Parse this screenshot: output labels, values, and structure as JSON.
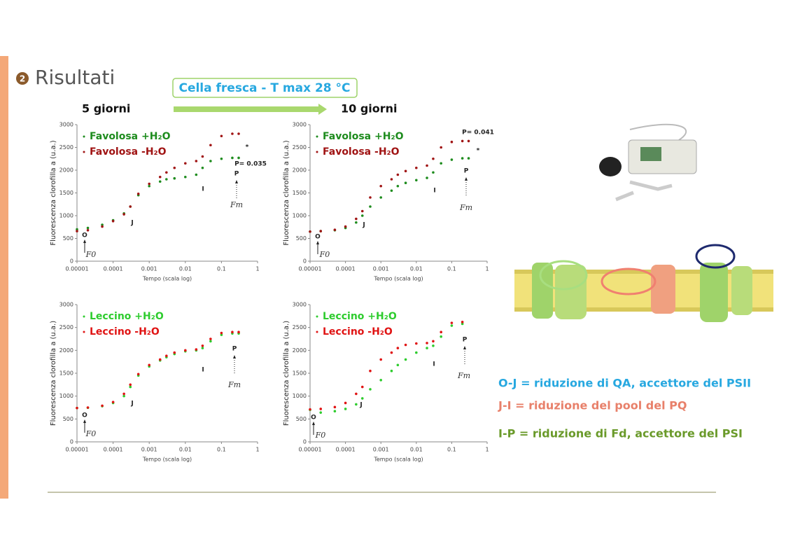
{
  "slide": {
    "number": "2",
    "title": "Risultati",
    "condition": "Cella fresca - T max 28 °C",
    "period_1": "5 giorni",
    "period_2": "10 giorni",
    "notes": [
      "O-J = riduzione di QA, accettore del PSII",
      "J-I = riduzione del pool del PQ",
      "I-P = riduzione di Fd, accettore del PSI"
    ]
  },
  "chart_data": [
    {
      "type": "scatter",
      "x_label": "Tempo (scala log)",
      "y_label": "Fluorescenza clorofilla a (u.a.)",
      "xscale": "log",
      "xlim": [
        1e-05,
        1
      ],
      "xticks": [
        {
          "value": 1e-05,
          "label": "0.00001"
        },
        0.0001,
        0.001,
        0.01,
        0.1,
        1
      ],
      "ylim": [
        0,
        3000
      ],
      "yticks": [
        0,
        500,
        1000,
        1500,
        2000,
        2500,
        3000
      ],
      "x": [
        1e-05,
        2e-05,
        5e-05,
        0.0001,
        0.0002,
        0.0003,
        0.0005,
        0.001,
        0.002,
        0.003,
        0.005,
        0.01,
        0.02,
        0.03,
        0.05,
        0.1,
        0.2,
        0.3
      ],
      "series": [
        {
          "name": "Favolosa +H₂O",
          "color": "#1e8c1e",
          "values": [
            700,
            730,
            800,
            900,
            1050,
            1200,
            1450,
            1650,
            1750,
            1800,
            1820,
            1850,
            1900,
            2050,
            2200,
            2250,
            2270,
            2270
          ]
        },
        {
          "name": "Favolosa -H₂O",
          "color": "#a01414",
          "values": [
            660,
            680,
            760,
            880,
            1030,
            1200,
            1480,
            1700,
            1850,
            1950,
            2050,
            2150,
            2200,
            2300,
            2550,
            2750,
            2800,
            2800
          ]
        }
      ],
      "annotations": [
        "O",
        "J",
        "I",
        "P",
        "Fm",
        "F0",
        "P= 0.035",
        "*"
      ]
    },
    {
      "type": "scatter",
      "x_label": "Tempo (scala log)",
      "y_label": "Fluorescenza clorofilla a (u.a.)",
      "xscale": "log",
      "xlim": [
        1e-05,
        1
      ],
      "xticks": [
        {
          "value": 1e-05,
          "label": "0.00001"
        },
        0.0001,
        0.001,
        0.01,
        0.1,
        1
      ],
      "ylim": [
        0,
        3000
      ],
      "yticks": [
        0,
        500,
        1000,
        1500,
        2000,
        2500,
        3000
      ],
      "x": [
        1e-05,
        2e-05,
        5e-05,
        0.0001,
        0.0002,
        0.0003,
        0.0005,
        0.001,
        0.002,
        0.003,
        0.005,
        0.01,
        0.02,
        0.03,
        0.05,
        0.1,
        0.2,
        0.3
      ],
      "series": [
        {
          "name": "Favolosa +H₂O",
          "color": "#1e8c1e",
          "values": [
            650,
            660,
            680,
            730,
            850,
            1000,
            1200,
            1400,
            1550,
            1650,
            1720,
            1780,
            1830,
            1950,
            2150,
            2230,
            2260,
            2260
          ]
        },
        {
          "name": "Favolosa -H₂O",
          "color": "#a01414",
          "values": [
            650,
            660,
            690,
            760,
            930,
            1100,
            1400,
            1650,
            1800,
            1900,
            1980,
            2050,
            2100,
            2250,
            2500,
            2620,
            2640,
            2640
          ]
        }
      ],
      "annotations": [
        "O",
        "J",
        "I",
        "P",
        "Fm",
        "F0",
        "P= 0.041",
        "*"
      ]
    },
    {
      "type": "scatter",
      "x_label": "Tempo (scala log)",
      "y_label": "Fluorescenza clorofilla a (u.a.)",
      "xscale": "log",
      "xlim": [
        1e-05,
        1
      ],
      "xticks": [
        {
          "value": 1e-05,
          "label": "0.00001"
        },
        0.0001,
        0.001,
        0.01,
        0.1,
        1
      ],
      "ylim": [
        0,
        3000
      ],
      "yticks": [
        0,
        500,
        1000,
        1500,
        2000,
        2500,
        3000
      ],
      "x": [
        1e-05,
        2e-05,
        5e-05,
        0.0001,
        0.0002,
        0.0003,
        0.0005,
        0.001,
        0.002,
        0.003,
        0.005,
        0.01,
        0.02,
        0.03,
        0.05,
        0.1,
        0.2,
        0.3
      ],
      "series": [
        {
          "name": "Leccino +H₂O",
          "color": "#2ecc2e",
          "values": [
            740,
            745,
            780,
            850,
            1000,
            1200,
            1450,
            1650,
            1780,
            1850,
            1920,
            1980,
            2000,
            2050,
            2200,
            2340,
            2370,
            2370
          ]
        },
        {
          "name": "Leccino -H₂O",
          "color": "#e01414",
          "values": [
            740,
            750,
            790,
            870,
            1050,
            1250,
            1480,
            1680,
            1800,
            1880,
            1950,
            2000,
            2020,
            2100,
            2250,
            2380,
            2400,
            2400
          ]
        }
      ],
      "annotations": [
        "O",
        "J",
        "I",
        "P",
        "Fm",
        "F0"
      ]
    },
    {
      "type": "scatter",
      "x_label": "Tempo (scala log)",
      "y_label": "Fluorescenza clorofilla a (u.a.)",
      "xscale": "log",
      "xlim": [
        1e-05,
        1
      ],
      "xticks": [
        {
          "value": 1e-05,
          "label": "0.00001"
        },
        0.0001,
        0.001,
        0.01,
        0.1,
        1
      ],
      "ylim": [
        0,
        3000
      ],
      "yticks": [
        0,
        500,
        1000,
        1500,
        2000,
        2500,
        3000
      ],
      "x": [
        1e-05,
        2e-05,
        5e-05,
        0.0001,
        0.0002,
        0.0003,
        0.0005,
        0.001,
        0.002,
        0.003,
        0.005,
        0.01,
        0.02,
        0.03,
        0.05,
        0.1,
        0.2
      ],
      "series": [
        {
          "name": "Leccino +H₂O",
          "color": "#2ecc2e",
          "values": [
            700,
            640,
            670,
            720,
            820,
            950,
            1150,
            1350,
            1550,
            1680,
            1800,
            1950,
            2050,
            2100,
            2300,
            2540,
            2580
          ]
        },
        {
          "name": "Leccino -H₂O",
          "color": "#e01414",
          "values": [
            710,
            720,
            760,
            850,
            1050,
            1200,
            1550,
            1800,
            1950,
            2050,
            2120,
            2150,
            2160,
            2200,
            2400,
            2600,
            2620
          ]
        }
      ],
      "annotations": [
        "O",
        "J",
        "I",
        "P",
        "Fm",
        "F0"
      ]
    }
  ]
}
